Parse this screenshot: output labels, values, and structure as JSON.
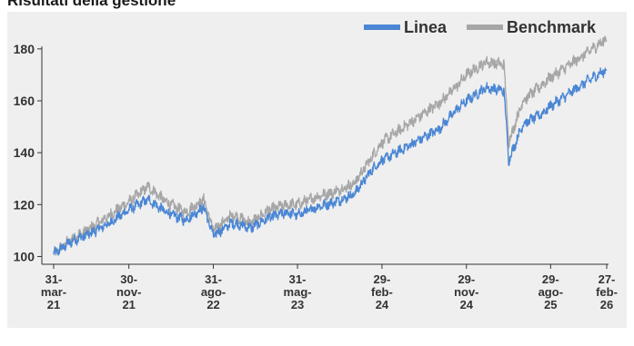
{
  "header": {
    "title": "Risultati della gestione"
  },
  "chart_data": {
    "type": "line",
    "title": "",
    "xlabel": "",
    "ylabel": "",
    "ylim": [
      97,
      188
    ],
    "yticks": [
      100,
      120,
      140,
      160,
      180
    ],
    "grid": false,
    "legend_position": "top-right",
    "colors": {
      "Linea": "#4a86d4",
      "Benchmark": "#a6a6a6"
    },
    "x_ticks": [
      {
        "date": "2021-03-31",
        "lines": [
          "31-",
          "mar-",
          "21"
        ]
      },
      {
        "date": "2021-11-30",
        "lines": [
          "30-",
          "nov-",
          "21"
        ]
      },
      {
        "date": "2022-08-31",
        "lines": [
          "31-",
          "ago-",
          "22"
        ]
      },
      {
        "date": "2023-05-31",
        "lines": [
          "31-",
          "mag-",
          "23"
        ]
      },
      {
        "date": "2024-02-29",
        "lines": [
          "29-",
          "feb-",
          "24"
        ]
      },
      {
        "date": "2024-11-29",
        "lines": [
          "29-",
          "nov-",
          "24"
        ]
      },
      {
        "date": "2025-08-29",
        "lines": [
          "29-",
          "ago-",
          "25"
        ]
      },
      {
        "date": "2026-02-27",
        "lines": [
          "27-",
          "feb-",
          "26"
        ]
      }
    ],
    "x": [
      "2021-03-31",
      "2021-05-31",
      "2021-07-31",
      "2021-09-30",
      "2021-11-30",
      "2022-01-31",
      "2022-03-31",
      "2022-05-31",
      "2022-07-31",
      "2022-08-31",
      "2022-10-31",
      "2022-12-31",
      "2023-02-28",
      "2023-04-30",
      "2023-05-31",
      "2023-07-31",
      "2023-09-30",
      "2023-11-30",
      "2024-01-31",
      "2024-02-29",
      "2024-04-30",
      "2024-06-30",
      "2024-08-31",
      "2024-10-31",
      "2024-11-29",
      "2025-01-31",
      "2025-03-31",
      "2025-04-15",
      "2025-05-31",
      "2025-07-31",
      "2025-08-29",
      "2025-10-31",
      "2025-12-31",
      "2026-02-27"
    ],
    "series": [
      {
        "name": "Linea",
        "values": [
          101,
          106,
          109,
          113,
          118,
          122,
          117,
          114,
          119,
          108,
          113,
          111,
          115,
          117,
          116,
          119,
          121,
          124,
          134,
          137,
          141,
          145,
          149,
          157,
          160,
          165,
          164,
          137,
          151,
          155,
          158,
          163,
          168,
          172
        ]
      },
      {
        "name": "Benchmark",
        "values": [
          101,
          107,
          111,
          116,
          121,
          127,
          121,
          117,
          122,
          110,
          116,
          113,
          118,
          120,
          120,
          123,
          125,
          128,
          139,
          144,
          149,
          154,
          159,
          166,
          170,
          175,
          174,
          144,
          160,
          166,
          169,
          174,
          179,
          184
        ]
      }
    ]
  }
}
